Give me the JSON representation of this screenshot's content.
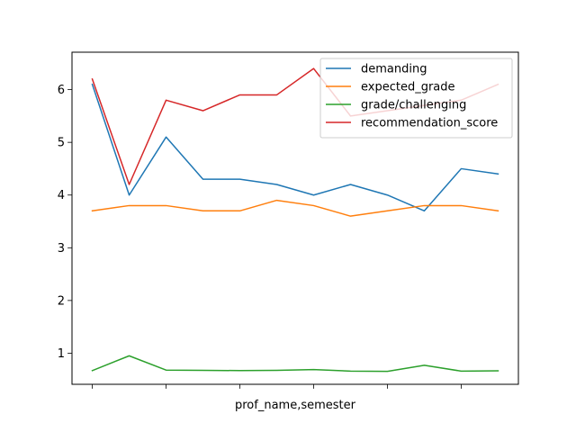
{
  "chart_data": {
    "type": "line",
    "title": "",
    "xlabel": "prof_name,semester",
    "ylabel": "",
    "x": [
      0,
      1,
      2,
      3,
      4,
      5,
      6,
      7,
      8,
      9,
      10,
      11
    ],
    "xticks": [
      0,
      2,
      4,
      6,
      8,
      10
    ],
    "xlim": [
      -0.55,
      11.55
    ],
    "ylim": [
      0.41,
      6.71
    ],
    "yticks": [
      1,
      2,
      3,
      4,
      5,
      6
    ],
    "grid": false,
    "legend_position": "top-right",
    "series": [
      {
        "name": "demanding",
        "color": "#1f77b4",
        "values": [
          6.1,
          4.0,
          5.1,
          4.3,
          4.3,
          4.2,
          4.0,
          4.2,
          4.0,
          3.7,
          4.5,
          4.4
        ]
      },
      {
        "name": "expected_grade",
        "color": "#ff7f0e",
        "values": [
          3.7,
          3.8,
          3.8,
          3.7,
          3.7,
          3.9,
          3.8,
          3.6,
          3.7,
          3.8,
          3.8,
          3.7
        ]
      },
      {
        "name": "grade/challenging",
        "color": "#2ca02c",
        "values": [
          0.67,
          0.95,
          0.68,
          0.675,
          0.67,
          0.675,
          0.69,
          0.66,
          0.655,
          0.77,
          0.66,
          0.665
        ]
      },
      {
        "name": "recommendation_score",
        "color": "#d62728",
        "values": [
          6.2,
          4.2,
          5.8,
          5.6,
          5.9,
          5.9,
          6.4,
          5.5,
          5.6,
          5.7,
          5.8,
          6.1
        ]
      }
    ]
  }
}
